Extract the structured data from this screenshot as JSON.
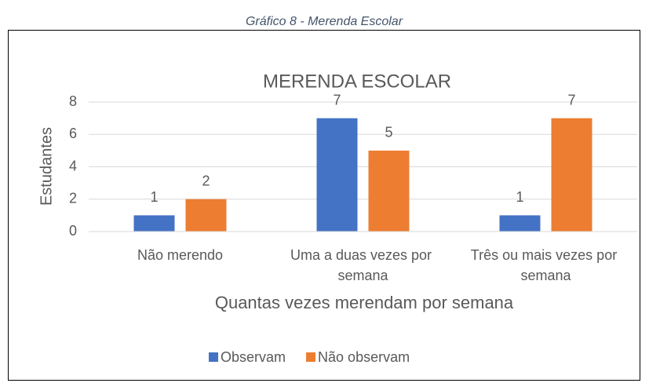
{
  "caption": "Gráfico 8 - Merenda Escolar",
  "chart_data": {
    "type": "bar",
    "title": "MERENDA ESCOLAR",
    "x_label": "Quantas vezes merendam por semana",
    "y_label": "Estudantes",
    "categories": [
      "Não merendo",
      "Uma a duas vezes por semana",
      "Três ou mais vezes por semana"
    ],
    "series": [
      {
        "name": "Observam",
        "color": "#4472c4",
        "values": [
          1,
          7,
          1
        ]
      },
      {
        "name": "Não observam",
        "color": "#ed7d31",
        "values": [
          2,
          5,
          7
        ]
      }
    ],
    "ylim": [
      0,
      8
    ],
    "yticks": [
      0,
      2,
      4,
      6,
      8
    ],
    "grid": true,
    "legend": "bottom"
  }
}
